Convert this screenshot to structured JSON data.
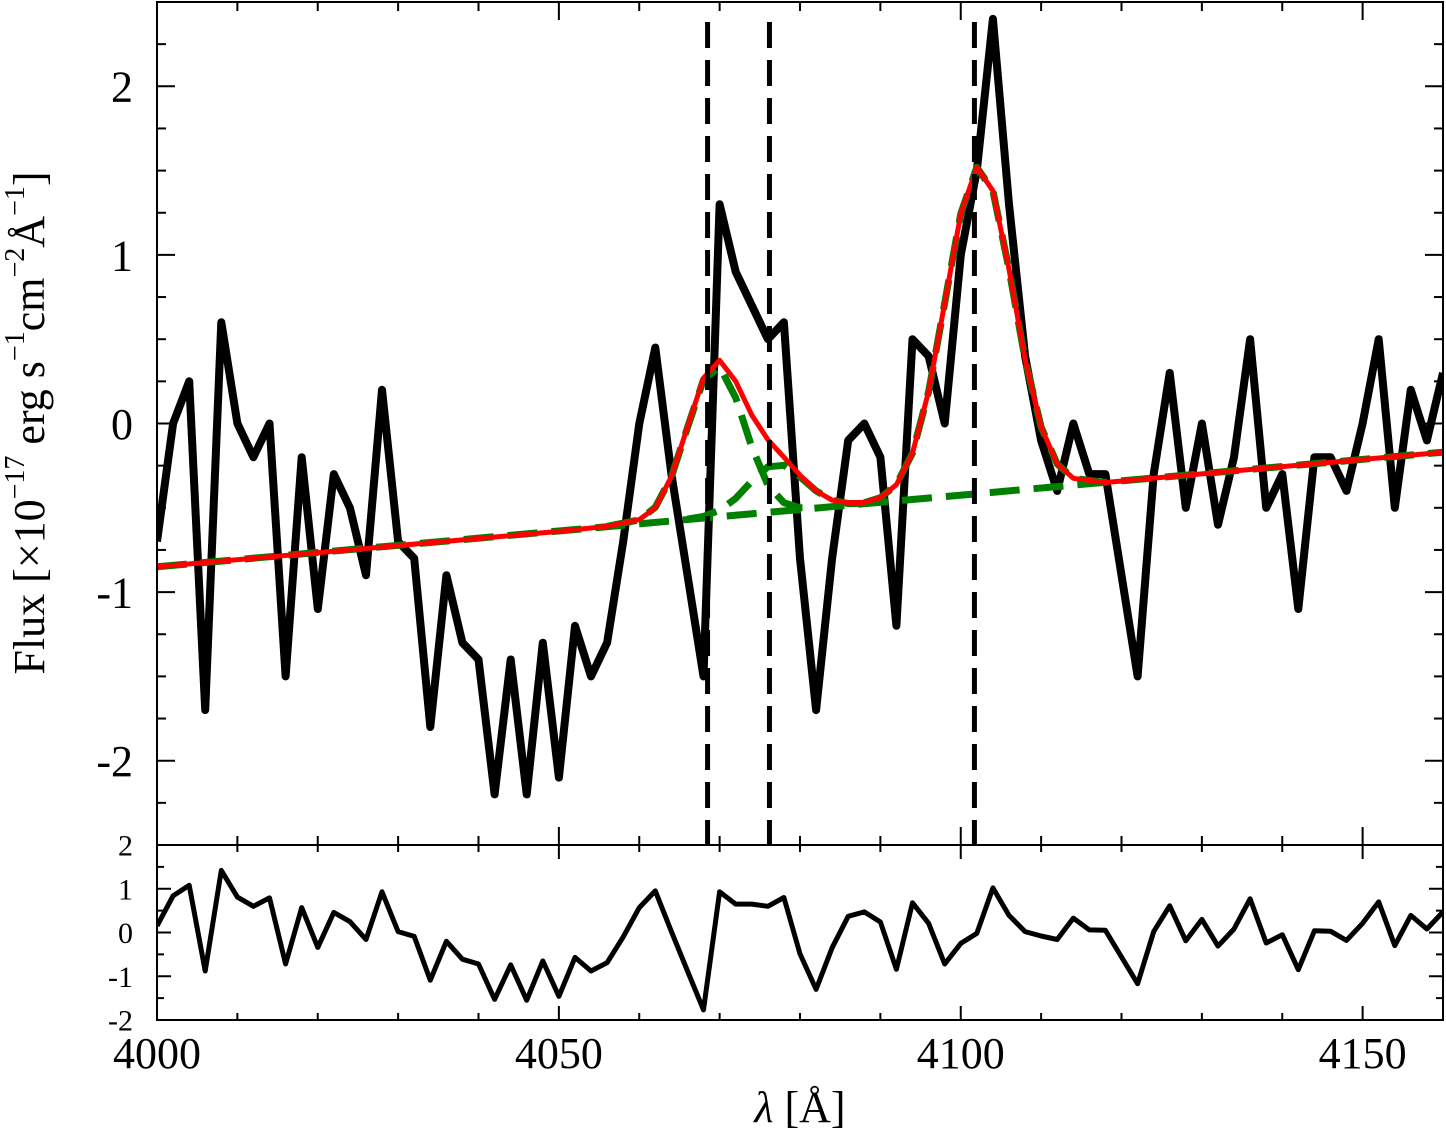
{
  "chart_data": [
    {
      "type": "line",
      "ylabel": [
        "Flux [×10",
        "−17",
        " erg s",
        "−1",
        "cm",
        "−2",
        "Å",
        "−1",
        "]"
      ],
      "x": [
        4000,
        4002,
        4004,
        4006,
        4008,
        4010,
        4012,
        4014,
        4016,
        4018,
        4020,
        4022,
        4024,
        4026,
        4028,
        4030,
        4032,
        4034,
        4036,
        4038,
        4040,
        4042,
        4044,
        4046,
        4048,
        4050,
        4052,
        4054,
        4056,
        4058,
        4060,
        4062,
        4064,
        4066,
        4068,
        4070,
        4072,
        4074,
        4076,
        4078,
        4080,
        4082,
        4084,
        4086,
        4088,
        4090,
        4092,
        4094,
        4096,
        4098,
        4100,
        4102,
        4104,
        4106,
        4108,
        4110,
        4112,
        4114,
        4116,
        4118,
        4120,
        4122,
        4124,
        4126,
        4128,
        4130,
        4132,
        4134,
        4136,
        4138,
        4140,
        4142,
        4144,
        4146,
        4148,
        4150,
        4152,
        4154,
        4156,
        4158,
        4160
      ],
      "xlim": [
        4000,
        4160
      ],
      "xticks": [
        4000,
        4050,
        4100,
        4150
      ],
      "xminor": [
        4010,
        4020,
        4030,
        4040,
        4060,
        4070,
        4080,
        4090,
        4110,
        4120,
        4130,
        4140
      ],
      "ylim": [
        -2.5,
        2.5
      ],
      "yticks": [
        -2,
        -1,
        0,
        1,
        2
      ],
      "yminor": [
        -2.25,
        -1.75,
        -1.5,
        -1.25,
        -0.75,
        -0.5,
        -0.25,
        0.25,
        0.5,
        0.75,
        1.25,
        1.5,
        1.75,
        2.25
      ],
      "series": [
        {
          "color": "#000000",
          "values": [
            -0.7,
            0.0,
            0.25,
            -1.7,
            0.6,
            0.0,
            -0.2,
            0.0,
            -1.5,
            -0.2,
            -1.1,
            -0.3,
            -0.5,
            -0.9,
            0.2,
            -0.7,
            -0.8,
            -1.8,
            -0.9,
            -1.3,
            -1.4,
            -2.2,
            -1.4,
            -2.2,
            -1.3,
            -2.1,
            -1.2,
            -1.5,
            -1.3,
            -0.7,
            0.0,
            0.45,
            -0.3,
            -0.9,
            -1.5,
            1.3,
            0.9,
            0.7,
            0.5,
            0.6,
            -0.8,
            -1.7,
            -0.8,
            -0.1,
            0.0,
            -0.2,
            -1.2,
            0.5,
            0.4,
            0.0,
            1.0,
            1.5,
            2.4,
            1.3,
            0.4,
            -0.1,
            -0.4,
            0.0,
            -0.3,
            -0.3,
            -0.9,
            -1.5,
            -0.3,
            0.3,
            -0.5,
            0.0,
            -0.6,
            -0.2,
            0.5,
            -0.5,
            -0.3,
            -1.1,
            -0.2,
            -0.2,
            -0.4,
            0.0,
            0.5,
            -0.5,
            0.2,
            -0.1,
            0.3
          ]
        },
        {
          "color": "#008000",
          "dashed": true,
          "x": [
            4000,
            4160
          ],
          "values": [
            -0.85,
            -0.17
          ]
        },
        {
          "color": "#008000",
          "dashed": true,
          "x": [
            4056,
            4060,
            4062,
            4064,
            4066,
            4068,
            4070,
            4072,
            4074,
            4076,
            4078,
            4080,
            4082
          ],
          "values": [
            -0.61,
            -0.572,
            -0.497,
            -0.316,
            -0.024,
            0.26,
            0.337,
            0.153,
            -0.14,
            -0.366,
            -0.47,
            -0.5,
            -0.5
          ]
        },
        {
          "color": "#008000",
          "dashed": true,
          "x": [
            4066,
            4068,
            4070,
            4072,
            4074,
            4076,
            4078,
            4080,
            4082,
            4084,
            4086,
            4088,
            4090
          ],
          "values": [
            -0.567,
            -0.551,
            -0.515,
            -0.444,
            -0.341,
            -0.257,
            -0.248,
            -0.316,
            -0.4,
            -0.455,
            -0.475,
            -0.474,
            -0.467
          ]
        },
        {
          "color": "#008000",
          "dashed": true,
          "x": [
            4088,
            4090,
            4092,
            4094,
            4096,
            4098,
            4100,
            4102,
            4104,
            4106,
            4108,
            4110,
            4112,
            4114,
            4118
          ],
          "values": [
            -0.47,
            -0.44,
            -0.363,
            -0.175,
            0.188,
            0.715,
            1.245,
            1.52,
            1.38,
            0.915,
            0.38,
            -0.02,
            -0.24,
            -0.325,
            -0.35
          ]
        },
        {
          "color": "#ff0000",
          "x": [
            4000,
            4050,
            4056,
            4060,
            4062,
            4064,
            4066,
            4068,
            4070,
            4072,
            4074,
            4076,
            4078,
            4080,
            4082,
            4084,
            4086,
            4088,
            4090,
            4092,
            4094,
            4096,
            4098,
            4100,
            4102,
            4104,
            4106,
            4108,
            4110,
            4112,
            4114,
            4118,
            4160
          ],
          "values": [
            -0.85,
            -0.64,
            -0.61,
            -0.57,
            -0.5,
            -0.315,
            -0.02,
            0.27,
            0.375,
            0.25,
            0.05,
            -0.096,
            -0.2,
            -0.306,
            -0.4,
            -0.455,
            -0.47,
            -0.468,
            -0.44,
            -0.363,
            -0.175,
            0.19,
            0.715,
            1.245,
            1.52,
            1.38,
            0.915,
            0.38,
            -0.02,
            -0.24,
            -0.325,
            -0.35,
            -0.17
          ]
        }
      ],
      "vlines": [
        4068.5,
        4076.2,
        4101.7
      ],
      "vline_color": "#000000"
    },
    {
      "type": "line",
      "xlabel": [
        "λ",
        " [Å]"
      ],
      "ylim": [
        -2,
        2
      ],
      "yticks": [
        -2,
        -1,
        0,
        1,
        2
      ],
      "yminor": [
        -1.5,
        -0.5,
        0.5,
        1.5
      ],
      "series": [
        {
          "color": "#000000",
          "values": [
            0.15,
            0.84,
            1.08,
            -0.88,
            1.42,
            0.81,
            0.6,
            0.79,
            -0.72,
            0.57,
            -0.34,
            0.46,
            0.25,
            -0.16,
            0.93,
            0.02,
            -0.09,
            -1.09,
            -0.2,
            -0.61,
            -0.72,
            -1.53,
            -0.74,
            -1.55,
            -0.65,
            -1.46,
            -0.57,
            -0.88,
            -0.69,
            -0.1,
            0.57,
            0.95,
            0.02,
            -0.88,
            -1.77,
            0.93,
            0.65,
            0.65,
            0.6,
            0.8,
            -0.49,
            -1.3,
            -0.35,
            0.37,
            0.47,
            0.24,
            -0.84,
            0.68,
            0.21,
            -0.72,
            -0.25,
            -0.02,
            1.02,
            0.39,
            0.02,
            -0.08,
            -0.16,
            0.33,
            0.06,
            0.05,
            -0.56,
            -1.17,
            0.02,
            0.61,
            -0.19,
            0.3,
            -0.31,
            0.08,
            0.77,
            -0.24,
            -0.05,
            -0.85,
            0.04,
            0.03,
            -0.18,
            0.21,
            0.7,
            -0.3,
            0.39,
            0.08,
            0.47
          ]
        }
      ]
    }
  ]
}
